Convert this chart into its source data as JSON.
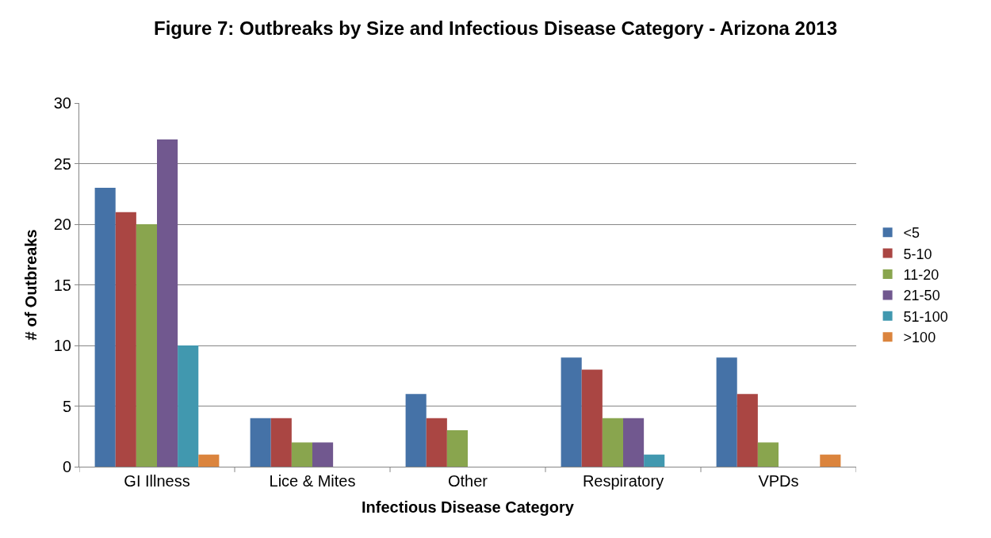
{
  "chart_data": {
    "type": "bar",
    "title": "Figure 7: Outbreaks by Size and Infectious Disease Category - Arizona 2013",
    "xlabel": "Infectious Disease Category",
    "ylabel": "# of Outbreaks",
    "categories": [
      "GI Illness",
      "Lice & Mites",
      "Other",
      "Respiratory",
      "VPDs"
    ],
    "series": [
      {
        "name": "<5",
        "color": "#4572a7",
        "values": [
          23,
          4,
          6,
          9,
          9
        ]
      },
      {
        "name": "5-10",
        "color": "#aa4643",
        "values": [
          21,
          4,
          4,
          8,
          6
        ]
      },
      {
        "name": "11-20",
        "color": "#89a54e",
        "values": [
          20,
          2,
          3,
          4,
          2
        ]
      },
      {
        "name": "21-50",
        "color": "#71588f",
        "values": [
          27,
          2,
          0,
          4,
          0
        ]
      },
      {
        "name": "51-100",
        "color": "#4198af",
        "values": [
          10,
          0,
          0,
          1,
          0
        ]
      },
      {
        "name": ">100",
        "color": "#db843d",
        "values": [
          1,
          0,
          0,
          0,
          1
        ]
      }
    ],
    "ylim": [
      0,
      30
    ],
    "yticks": [
      0,
      5,
      10,
      15,
      20,
      25,
      30
    ],
    "grid": "y",
    "legend": "right"
  }
}
